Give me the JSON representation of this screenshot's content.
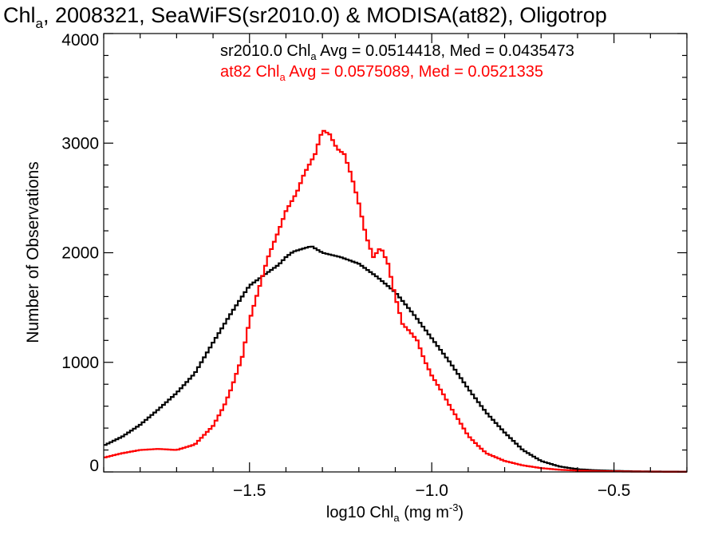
{
  "chart_data": {
    "type": "line",
    "title": {
      "prefix": "Chl",
      "sub": "a",
      "suffix": ", 2008321, SeaWiFS(sr2010.0) & MODISA(at82), Oligotrop"
    },
    "xlabel": {
      "prefix": "log10 Chl",
      "sub": "a",
      "mid": " (mg m",
      "sup": "-3",
      "suffix": ")"
    },
    "ylabel": "Number of Observations",
    "xlim": [
      -1.9,
      -0.3
    ],
    "ylim": [
      0,
      4000
    ],
    "xticks": [
      {
        "value": -1.5,
        "label": "−1.5"
      },
      {
        "value": -1.0,
        "label": "−1.0"
      },
      {
        "value": -0.5,
        "label": "−0.5"
      }
    ],
    "yticks": [
      {
        "value": 0,
        "label": "0"
      },
      {
        "value": 1000,
        "label": "1000"
      },
      {
        "value": 2000,
        "label": "2000"
      },
      {
        "value": 3000,
        "label": "3000"
      },
      {
        "value": 4000,
        "label": "4000"
      }
    ],
    "legend": [
      {
        "name": "sr2010.0",
        "prefix": "sr2010.0 Chl",
        "sub": "a",
        "suffix": " Avg = 0.0514418, Med = 0.0435473",
        "color": "#000000"
      },
      {
        "name": "at82",
        "prefix": "at82 Chl",
        "sub": "a",
        "suffix": " Avg = 0.0575089, Med = 0.0521335",
        "color": "#ff0000"
      }
    ],
    "legend_position": "top-right",
    "series": [
      {
        "name": "sr2010.0",
        "color": "#000000",
        "points": [
          [
            -1.9,
            240
          ],
          [
            -1.85,
            320
          ],
          [
            -1.8,
            430
          ],
          [
            -1.75,
            570
          ],
          [
            -1.7,
            720
          ],
          [
            -1.65,
            900
          ],
          [
            -1.6,
            1180
          ],
          [
            -1.55,
            1450
          ],
          [
            -1.5,
            1700
          ],
          [
            -1.45,
            1820
          ],
          [
            -1.42,
            1890
          ],
          [
            -1.4,
            1960
          ],
          [
            -1.38,
            2010
          ],
          [
            -1.35,
            2040
          ],
          [
            -1.33,
            2060
          ],
          [
            -1.3,
            2000
          ],
          [
            -1.25,
            1960
          ],
          [
            -1.2,
            1900
          ],
          [
            -1.15,
            1780
          ],
          [
            -1.1,
            1640
          ],
          [
            -1.05,
            1440
          ],
          [
            -1.0,
            1220
          ],
          [
            -0.95,
            1000
          ],
          [
            -0.9,
            760
          ],
          [
            -0.85,
            540
          ],
          [
            -0.8,
            360
          ],
          [
            -0.75,
            200
          ],
          [
            -0.7,
            100
          ],
          [
            -0.65,
            50
          ],
          [
            -0.6,
            25
          ],
          [
            -0.55,
            15
          ],
          [
            -0.5,
            10
          ],
          [
            -0.45,
            6
          ],
          [
            -0.4,
            4
          ],
          [
            -0.35,
            3
          ],
          [
            -0.3,
            2
          ]
        ]
      },
      {
        "name": "at82",
        "color": "#ff0000",
        "points": [
          [
            -1.9,
            130
          ],
          [
            -1.85,
            170
          ],
          [
            -1.8,
            200
          ],
          [
            -1.75,
            210
          ],
          [
            -1.7,
            200
          ],
          [
            -1.65,
            250
          ],
          [
            -1.6,
            420
          ],
          [
            -1.57,
            600
          ],
          [
            -1.55,
            760
          ],
          [
            -1.52,
            1050
          ],
          [
            -1.5,
            1380
          ],
          [
            -1.47,
            1720
          ],
          [
            -1.45,
            1950
          ],
          [
            -1.42,
            2200
          ],
          [
            -1.4,
            2380
          ],
          [
            -1.37,
            2550
          ],
          [
            -1.35,
            2720
          ],
          [
            -1.32,
            2900
          ],
          [
            -1.3,
            3120
          ],
          [
            -1.28,
            3080
          ],
          [
            -1.26,
            2950
          ],
          [
            -1.24,
            2900
          ],
          [
            -1.22,
            2700
          ],
          [
            -1.2,
            2450
          ],
          [
            -1.18,
            2150
          ],
          [
            -1.16,
            1960
          ],
          [
            -1.14,
            2050
          ],
          [
            -1.12,
            1900
          ],
          [
            -1.1,
            1600
          ],
          [
            -1.08,
            1350
          ],
          [
            -1.06,
            1280
          ],
          [
            -1.04,
            1200
          ],
          [
            -1.02,
            1020
          ],
          [
            -1.0,
            880
          ],
          [
            -0.97,
            720
          ],
          [
            -0.95,
            600
          ],
          [
            -0.92,
            440
          ],
          [
            -0.9,
            330
          ],
          [
            -0.87,
            230
          ],
          [
            -0.85,
            170
          ],
          [
            -0.8,
            100
          ],
          [
            -0.75,
            60
          ],
          [
            -0.7,
            35
          ],
          [
            -0.65,
            20
          ],
          [
            -0.6,
            12
          ],
          [
            -0.55,
            8
          ],
          [
            -0.5,
            5
          ],
          [
            -0.45,
            3
          ],
          [
            -0.4,
            2
          ],
          [
            -0.35,
            1
          ],
          [
            -0.3,
            1
          ]
        ]
      }
    ]
  }
}
